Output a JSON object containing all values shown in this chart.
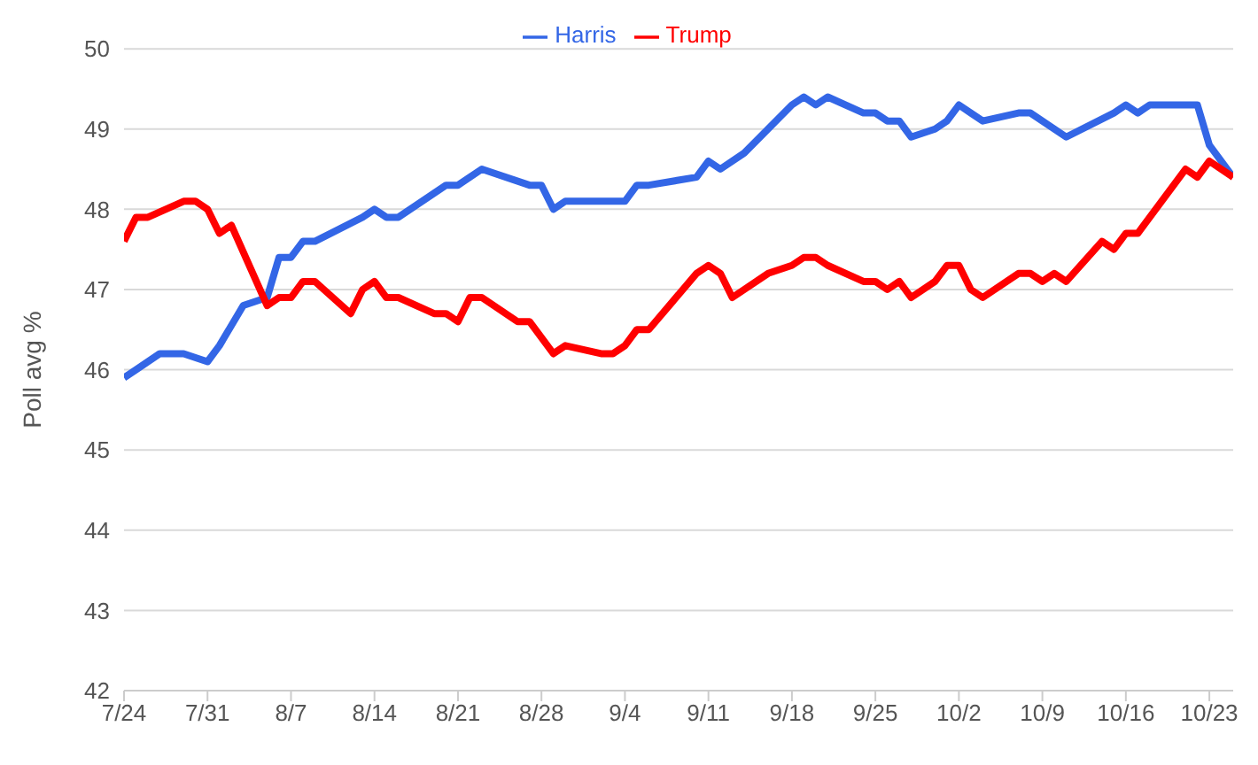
{
  "chart_data": {
    "type": "line",
    "ylabel": "Poll avg %",
    "xlim": [
      "--07-24",
      "--10-25"
    ],
    "ylim": [
      42,
      50
    ],
    "yticks": [
      42,
      43,
      44,
      45,
      46,
      47,
      48,
      49,
      50
    ],
    "xticks": [
      {
        "value": "--07-24",
        "label": "7/24"
      },
      {
        "value": "--07-31",
        "label": "7/31"
      },
      {
        "value": "--08-07",
        "label": "8/7"
      },
      {
        "value": "--08-14",
        "label": "8/14"
      },
      {
        "value": "--08-21",
        "label": "8/21"
      },
      {
        "value": "--08-28",
        "label": "8/28"
      },
      {
        "value": "--09-04",
        "label": "9/4"
      },
      {
        "value": "--09-11",
        "label": "9/11"
      },
      {
        "value": "--09-18",
        "label": "9/18"
      },
      {
        "value": "--09-25",
        "label": "9/25"
      },
      {
        "value": "--10-02",
        "label": "10/2"
      },
      {
        "value": "--10-09",
        "label": "10/9"
      },
      {
        "value": "--10-16",
        "label": "10/16"
      },
      {
        "value": "--10-23",
        "label": "10/23"
      }
    ],
    "grid": "y",
    "legend": "top",
    "marker": "none",
    "line_style": "solid",
    "series": [
      {
        "name": "Harris",
        "color": "#3366e6",
        "x": [
          "--07-24",
          "--07-25",
          "--07-27",
          "--07-29",
          "--07-31",
          "--08-01",
          "--08-03",
          "--08-05",
          "--08-06",
          "--08-07",
          "--08-08",
          "--08-09",
          "--08-13",
          "--08-14",
          "--08-15",
          "--08-16",
          "--08-20",
          "--08-21",
          "--08-23",
          "--08-27",
          "--08-28",
          "--08-29",
          "--08-30",
          "--09-04",
          "--09-05",
          "--09-06",
          "--09-10",
          "--09-11",
          "--09-12",
          "--09-14",
          "--09-18",
          "--09-19",
          "--09-20",
          "--09-21",
          "--09-24",
          "--09-25",
          "--09-26",
          "--09-27",
          "--09-28",
          "--09-30",
          "--10-01",
          "--10-02",
          "--10-03",
          "--10-04",
          "--10-07",
          "--10-08",
          "--10-11",
          "--10-15",
          "--10-16",
          "--10-17",
          "--10-18",
          "--10-22",
          "--10-23",
          "--10-25"
        ],
        "values": [
          45.9,
          46.0,
          46.2,
          46.2,
          46.1,
          46.3,
          46.8,
          46.9,
          47.4,
          47.4,
          47.6,
          47.6,
          47.9,
          48.0,
          47.9,
          47.9,
          48.3,
          48.3,
          48.5,
          48.3,
          48.3,
          48.0,
          48.1,
          48.1,
          48.3,
          48.3,
          48.4,
          48.6,
          48.5,
          48.7,
          49.3,
          49.4,
          49.3,
          49.4,
          49.2,
          49.2,
          49.1,
          49.1,
          48.9,
          49.0,
          49.1,
          49.3,
          49.2,
          49.1,
          49.2,
          49.2,
          48.9,
          49.2,
          49.3,
          49.2,
          49.3,
          49.3,
          48.8,
          48.4
        ]
      },
      {
        "name": "Trump",
        "color": "#ff0000",
        "x": [
          "--07-24",
          "--07-25",
          "--07-26",
          "--07-29",
          "--07-30",
          "--07-31",
          "--08-01",
          "--08-02",
          "--08-05",
          "--08-06",
          "--08-07",
          "--08-08",
          "--08-09",
          "--08-12",
          "--08-13",
          "--08-14",
          "--08-15",
          "--08-16",
          "--08-19",
          "--08-20",
          "--08-21",
          "--08-22",
          "--08-23",
          "--08-26",
          "--08-27",
          "--08-29",
          "--08-30",
          "--09-02",
          "--09-03",
          "--09-04",
          "--09-05",
          "--09-06",
          "--09-10",
          "--09-11",
          "--09-12",
          "--09-13",
          "--09-14",
          "--09-16",
          "--09-18",
          "--09-19",
          "--09-20",
          "--09-21",
          "--09-24",
          "--09-25",
          "--09-26",
          "--09-27",
          "--09-28",
          "--09-30",
          "--10-01",
          "--10-02",
          "--10-03",
          "--10-04",
          "--10-07",
          "--10-08",
          "--10-09",
          "--10-10",
          "--10-11",
          "--10-14",
          "--10-15",
          "--10-16",
          "--10-17",
          "--10-21",
          "--10-22",
          "--10-23",
          "--10-25"
        ],
        "values": [
          47.6,
          47.9,
          47.9,
          48.1,
          48.1,
          48.0,
          47.7,
          47.8,
          46.8,
          46.9,
          46.9,
          47.1,
          47.1,
          46.7,
          47.0,
          47.1,
          46.9,
          46.9,
          46.7,
          46.7,
          46.6,
          46.9,
          46.9,
          46.6,
          46.6,
          46.2,
          46.3,
          46.2,
          46.2,
          46.3,
          46.5,
          46.5,
          47.2,
          47.3,
          47.2,
          46.9,
          47.0,
          47.2,
          47.3,
          47.4,
          47.4,
          47.3,
          47.1,
          47.1,
          47.0,
          47.1,
          46.9,
          47.1,
          47.3,
          47.3,
          47.0,
          46.9,
          47.2,
          47.2,
          47.1,
          47.2,
          47.1,
          47.6,
          47.5,
          47.7,
          47.7,
          48.5,
          48.4,
          48.6,
          48.4
        ]
      }
    ]
  }
}
